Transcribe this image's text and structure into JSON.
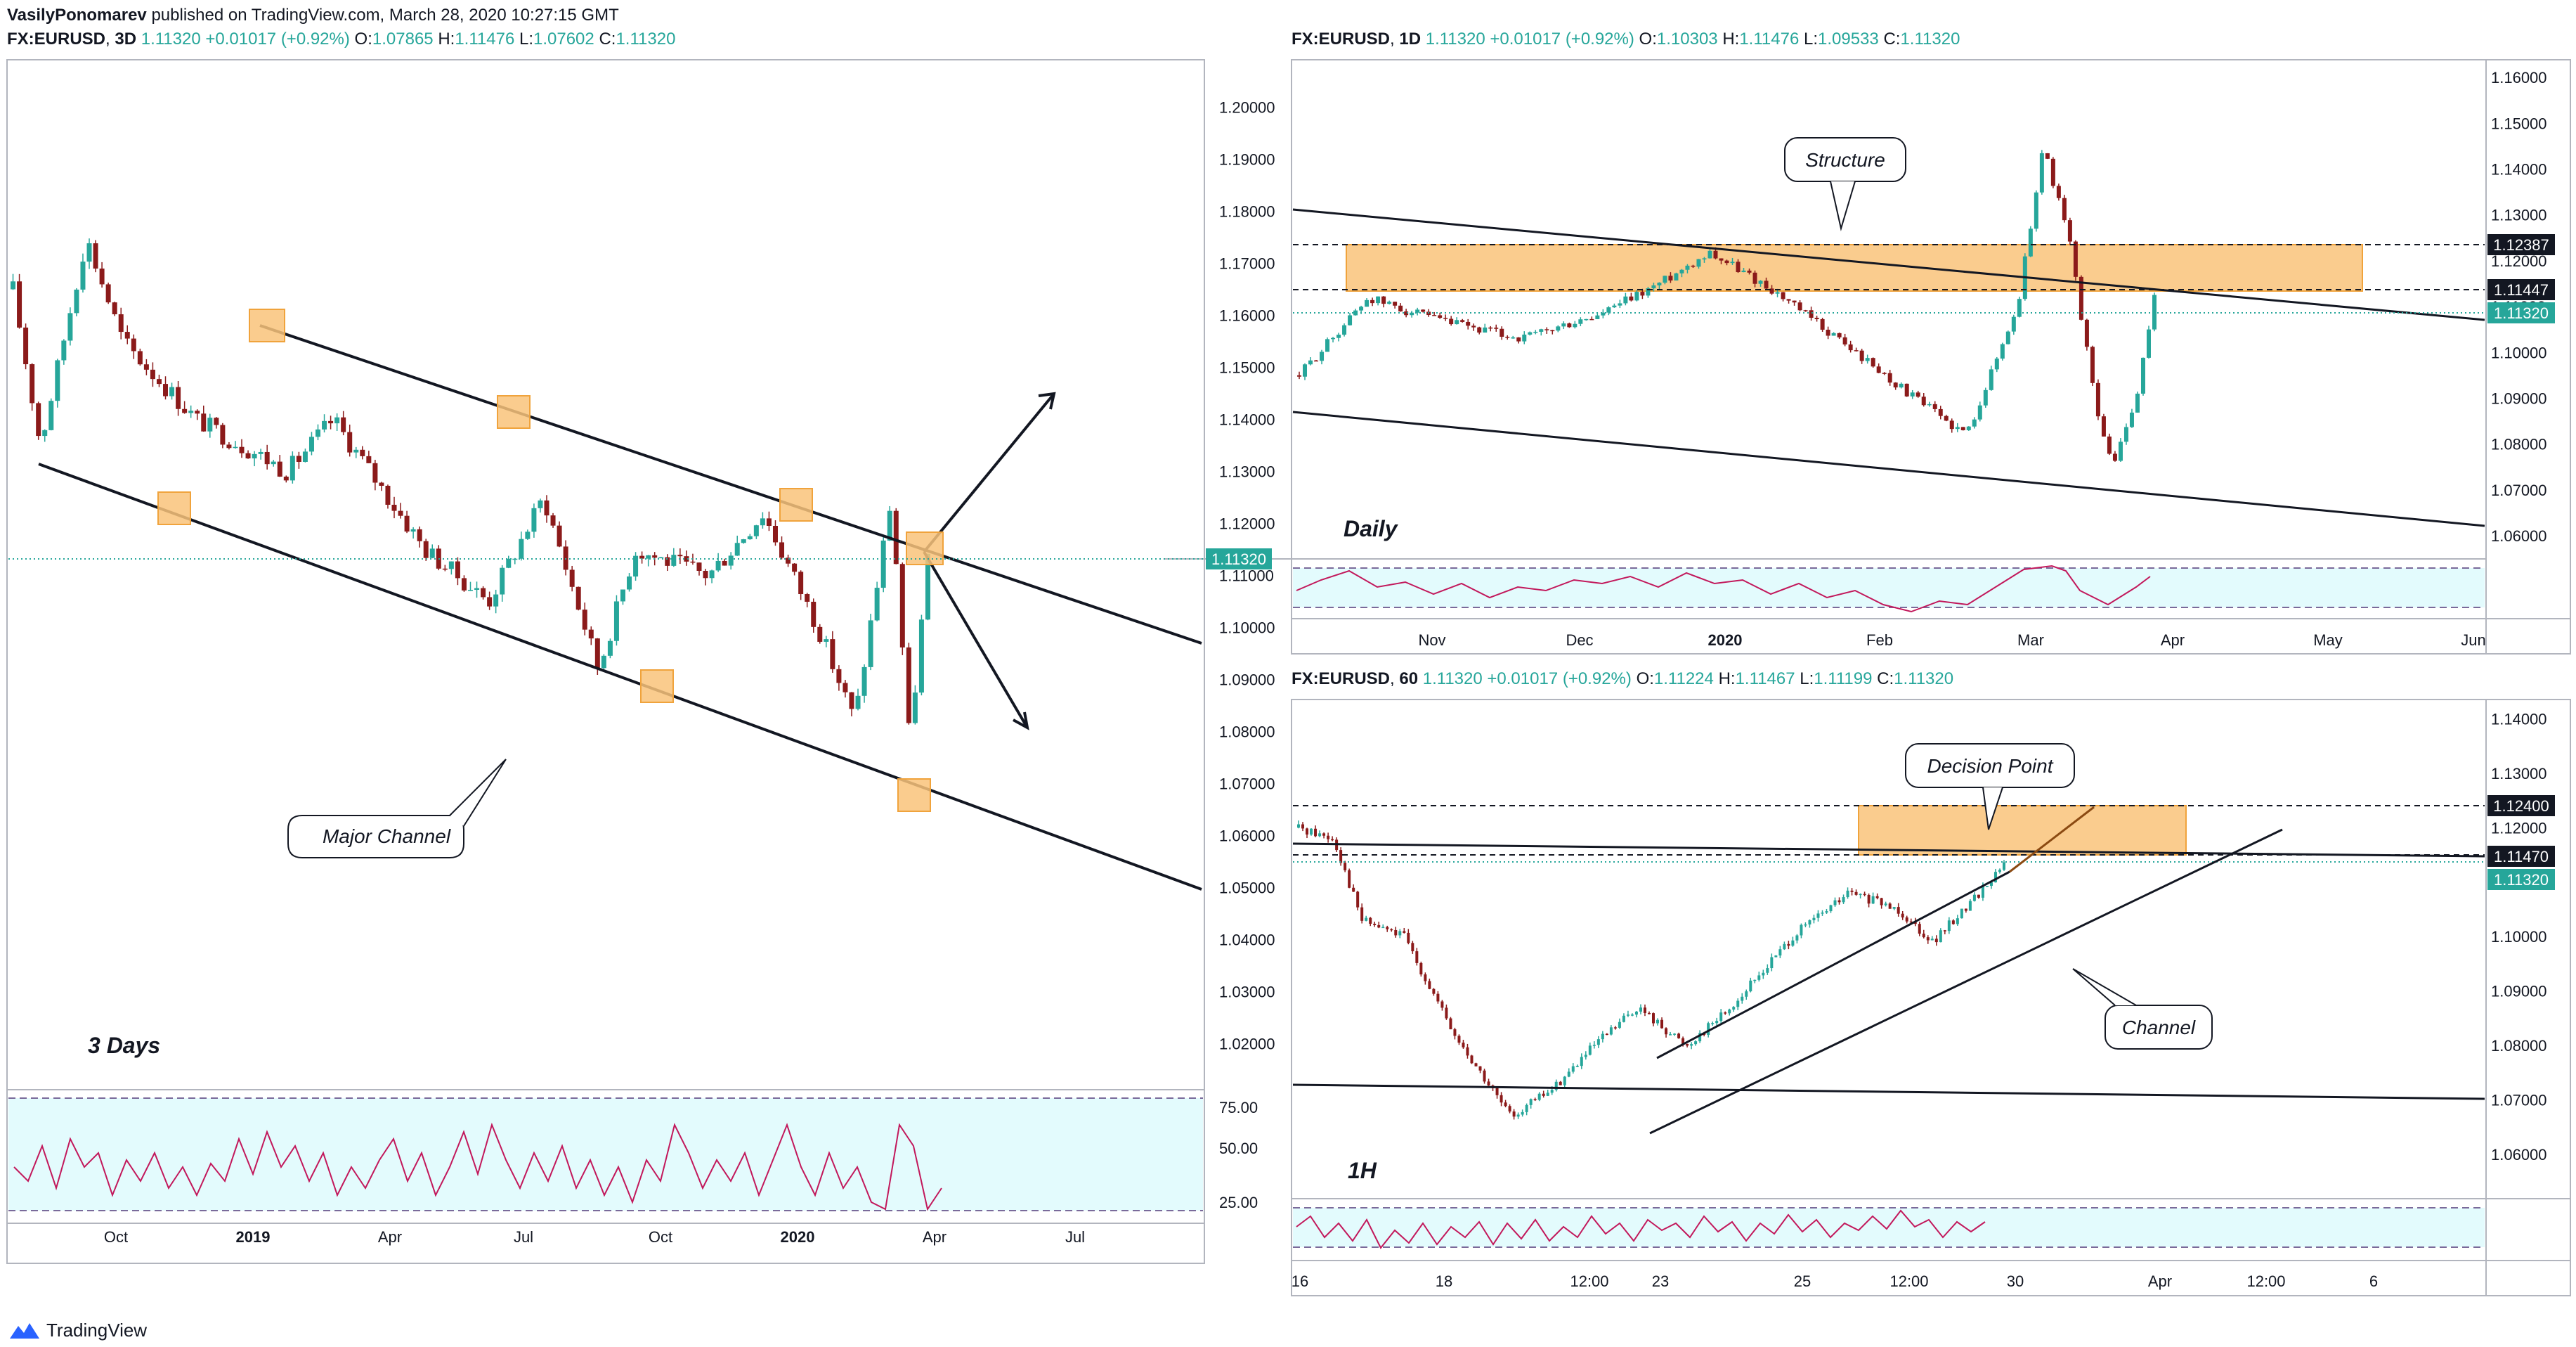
{
  "header": {
    "author": "VasilyPonomarev",
    "text": "published on TradingView.com, March 28, 2020 10:27:15 GMT"
  },
  "footer": {
    "brand": "TradingView"
  },
  "colors": {
    "up": "#26a69a",
    "down": "#8b1a1a",
    "zone": "#f9c37a",
    "rsi_fill": "#e3fbfd",
    "rsi_line": "#c2185b",
    "price_line": "#26a69a"
  },
  "chart_data": [
    {
      "type": "candlestick",
      "symbol": "FX:EURUSD",
      "interval": "3D",
      "last": "1.11320",
      "change": "+0.01017 (+0.92%)",
      "ohlc": {
        "O": "1.07865",
        "H": "1.11476",
        "L": "1.07602",
        "C": "1.11320"
      },
      "label": "3 Days",
      "y_ticks": [
        "1.20000",
        "1.19000",
        "1.18000",
        "1.17000",
        "1.16000",
        "1.15000",
        "1.14000",
        "1.13000",
        "1.12000",
        "1.11000",
        "1.10000",
        "1.09000",
        "1.08000",
        "1.07000",
        "1.06000",
        "1.05000",
        "1.04000",
        "1.03000",
        "1.02000"
      ],
      "price_badge": "1.11320",
      "x_ticks": [
        "Oct",
        "2019",
        "Apr",
        "Jul",
        "Oct",
        "2020",
        "Apr",
        "Jul"
      ],
      "ylim": [
        1.0125,
        1.2075
      ],
      "annotation": "Major Channel",
      "rsi_ticks": [
        "75.00",
        "50.00",
        "25.00"
      ],
      "rsi_bounds": [
        80,
        20
      ]
    },
    {
      "type": "candlestick",
      "symbol": "FX:EURUSD",
      "interval": "1D",
      "last": "1.11320",
      "change": "+0.01017 (+0.92%)",
      "ohlc": {
        "O": "1.10303",
        "H": "1.11476",
        "L": "1.09533",
        "C": "1.11320"
      },
      "label": "Daily",
      "y_ticks": [
        "1.16000",
        "1.15000",
        "1.14000",
        "1.13000",
        "1.12000",
        "1.11000",
        "1.10000",
        "1.09000",
        "1.08000",
        "1.07000",
        "1.06000"
      ],
      "level_badges": [
        "1.12387",
        "1.11447",
        "1.11320"
      ],
      "x_ticks": [
        "Nov",
        "Dec",
        "2020",
        "Feb",
        "Mar",
        "Apr",
        "May",
        "Jun"
      ],
      "ylim": [
        1.0565,
        1.162
      ],
      "annotation": "Structure",
      "rsi_bounds": [
        80,
        20
      ]
    },
    {
      "type": "candlestick",
      "symbol": "FX:EURUSD",
      "interval": "60",
      "last": "1.11320",
      "change": "+0.01017 (+0.92%)",
      "ohlc": {
        "O": "1.11224",
        "H": "1.11467",
        "L": "1.11199",
        "C": "1.11320"
      },
      "label": "1H",
      "y_ticks": [
        "1.14000",
        "1.13000",
        "1.12000",
        "1.11000",
        "1.10000",
        "1.09000",
        "1.08000",
        "1.07000",
        "1.06000"
      ],
      "level_badges": [
        "1.12400",
        "1.11470",
        "1.11320"
      ],
      "x_ticks": [
        "16",
        "18",
        "12:00",
        "23",
        "25",
        "12:00",
        "30",
        "Apr",
        "12:00",
        "6"
      ],
      "ylim": [
        1.0525,
        1.142
      ],
      "annotations": [
        "Decision Point",
        "Channel"
      ],
      "rsi_bounds": [
        80,
        20
      ]
    }
  ]
}
